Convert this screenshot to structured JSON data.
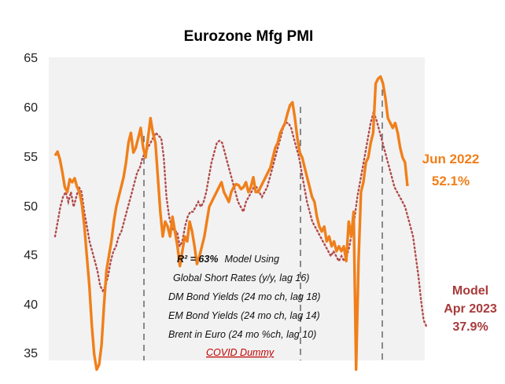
{
  "chart_data": {
    "type": "line",
    "title": "Eurozone Mfg PMI",
    "xlabel": "",
    "ylabel": "",
    "ylim": [
      33.5,
      65
    ],
    "y_ticks": [
      "65",
      "60",
      "55",
      "50",
      "45",
      "40",
      "35"
    ],
    "grid": false,
    "legend": "none",
    "colors": {
      "actual": "#f07f1a",
      "model": "#b24a4a",
      "vlines": "#444444"
    },
    "series": [
      {
        "line_style": "solid",
        "values": [
          55.2,
          55.6,
          54.8,
          53.5,
          52.0,
          51.5,
          52.8,
          52.5,
          52.9,
          52.0,
          51.5,
          50.2,
          48.0,
          45.0,
          42.0,
          38.0,
          35.0,
          33.5,
          34.0,
          36.0,
          40.0,
          43.5,
          45.0,
          46.5,
          48.5,
          50.0,
          51.0,
          52.0,
          53.0,
          54.5,
          56.5,
          57.5,
          55.5,
          56.0,
          57.0,
          58.0,
          56.0,
          55.0,
          57.0,
          59.0,
          57.5,
          56.5,
          53.0,
          49.5,
          47.0,
          48.5,
          48.0,
          47.0,
          49.0,
          47.5,
          46.0,
          44.0,
          45.5,
          47.0,
          46.5,
          48.5,
          47.5,
          46.0,
          44.2,
          45.0,
          46.0,
          47.0,
          48.5,
          50.0,
          50.5,
          51.0,
          51.5,
          52.0,
          52.5,
          51.5,
          51.0,
          50.5,
          51.5,
          52.0,
          52.3,
          52.2,
          51.8,
          52.0,
          52.5,
          51.5,
          52.0,
          53.0,
          51.5,
          51.5,
          52.0,
          52.5,
          53.0,
          53.5,
          54.0,
          55.0,
          56.0,
          56.5,
          57.5,
          58.0,
          58.5,
          59.5,
          60.3,
          60.6,
          59.0,
          57.0,
          55.5,
          55.0,
          54.0,
          53.0,
          52.0,
          51.0,
          50.5,
          49.0,
          48.0,
          47.5,
          48.0,
          46.5,
          47.0,
          46.0,
          46.5,
          45.5,
          46.0,
          45.5,
          46.0,
          44.5,
          48.5,
          47.0,
          49.5,
          33.5,
          44.5,
          51.5,
          52.5,
          54.5,
          55.0,
          56.5,
          57.5,
          62.5,
          63.0,
          63.2,
          62.5,
          61.0,
          59.0,
          58.5,
          58.0,
          58.5,
          57.5,
          56.0,
          55.0,
          54.5,
          52.1
        ]
      },
      {
        "line_style": "dotted",
        "values": [
          47.0,
          48.5,
          50.0,
          51.0,
          51.5,
          50.5,
          51.5,
          50.0,
          51.0,
          52.0,
          51.5,
          49.5,
          48.0,
          46.5,
          45.5,
          44.5,
          43.5,
          42.0,
          41.5,
          42.0,
          43.0,
          44.5,
          45.5,
          46.0,
          47.0,
          47.5,
          48.5,
          49.5,
          50.5,
          51.5,
          52.5,
          53.5,
          54.0,
          55.0,
          55.5,
          56.0,
          56.5,
          57.0,
          57.5,
          57.2,
          57.0,
          55.0,
          51.0,
          49.0,
          48.0,
          47.5,
          47.5,
          46.0,
          46.5,
          48.0,
          49.0,
          49.5,
          49.5,
          50.0,
          50.5,
          50.0,
          50.5,
          51.5,
          53.0,
          54.5,
          55.5,
          56.5,
          56.7,
          56.5,
          55.5,
          54.5,
          53.5,
          52.5,
          51.5,
          50.5,
          50.0,
          49.5,
          50.5,
          51.0,
          51.5,
          52.0,
          52.0,
          51.5,
          51.0,
          51.5,
          52.0,
          53.0,
          54.0,
          55.0,
          56.0,
          57.0,
          58.0,
          58.5,
          58.5,
          58.0,
          57.0,
          56.0,
          55.0,
          53.5,
          52.0,
          50.5,
          49.5,
          48.5,
          48.0,
          47.5,
          47.0,
          46.5,
          46.0,
          45.5,
          45.0,
          45.5,
          45.0,
          44.5,
          45.0,
          44.5,
          45.0,
          46.0,
          47.5,
          49.0,
          51.0,
          52.5,
          54.0,
          55.5,
          57.0,
          58.5,
          59.5,
          59.0,
          58.0,
          57.0,
          56.0,
          55.0,
          54.0,
          53.0,
          52.0,
          51.5,
          51.0,
          50.5,
          50.0,
          49.0,
          48.0,
          47.0,
          45.0,
          43.0,
          40.5,
          38.5,
          37.9
        ]
      }
    ]
  },
  "annotations": {
    "r2": "R² = 63%",
    "model_using": "Model Using",
    "lines": [
      "Global Short Rates (y/y, lag 16)",
      "DM Bond Yields (24 mo ch, lag 18)",
      "EM Bond Yields (24 mo ch, lag 14)",
      "Brent in  Euro (24 mo %ch, lag 10)"
    ],
    "covid": "COVID Dummy"
  },
  "labels": {
    "actual_date": "Jun 2022",
    "actual_value": "52.1%",
    "model_title": "Model",
    "model_date": "Apr  2023",
    "model_value": "37.9%"
  }
}
